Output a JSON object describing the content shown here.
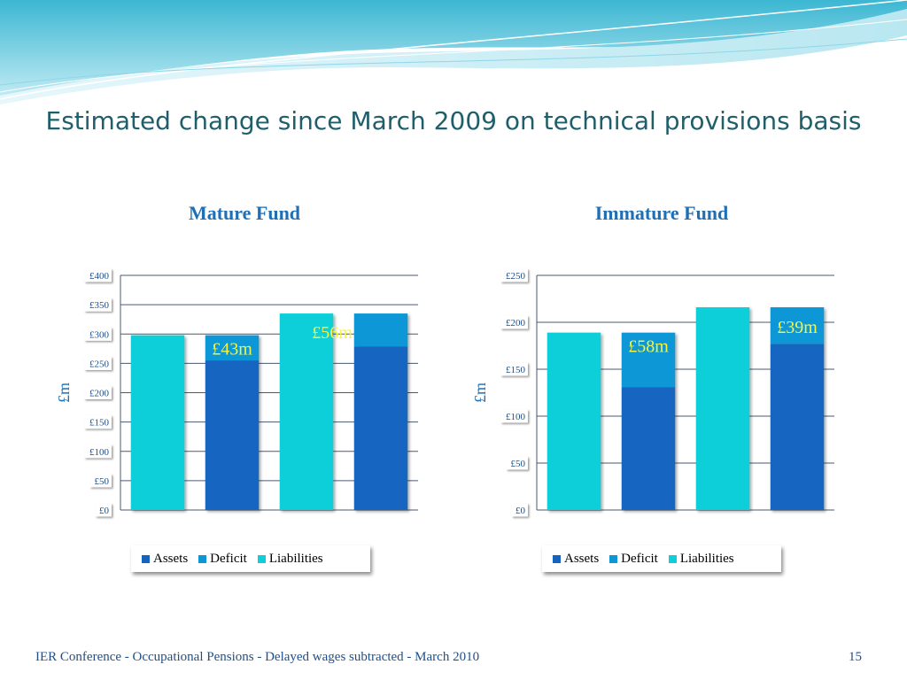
{
  "slide": {
    "title": "Estimated change since March 2009 on technical provisions basis",
    "footer": "IER Conference - Occupational Pensions - Delayed wages subtracted - March 2010",
    "page_number": "15"
  },
  "colors": {
    "assets": "#1565c0",
    "deficit": "#0b97d6",
    "liabilities": "#0ccfd9",
    "annotation": "#f5f542",
    "title": "#1f5f6a",
    "chart_title": "#1e6fb5"
  },
  "chart_data": [
    {
      "type": "bar",
      "stacked": true,
      "title": "Mature Fund",
      "ylabel": "£m",
      "ylim": [
        0,
        400
      ],
      "yticks": [
        0,
        50,
        100,
        150,
        200,
        250,
        300,
        350,
        400
      ],
      "ytick_labels": [
        "£0",
        "£50",
        "£100",
        "£150",
        "£200",
        "£250",
        "£300",
        "£350",
        "£400"
      ],
      "legend": [
        "Assets",
        "Deficit",
        "Liabilities"
      ],
      "legend_position": "bottom",
      "grid": true,
      "bars": [
        {
          "liabilities": 298
        },
        {
          "assets": 255,
          "deficit": 43,
          "label": "£43m"
        },
        {
          "liabilities": 335
        },
        {
          "assets": 279,
          "deficit": 56,
          "label": "£56m"
        }
      ]
    },
    {
      "type": "bar",
      "stacked": true,
      "title": "Immature Fund",
      "ylabel": "£m",
      "ylim": [
        0,
        250
      ],
      "yticks": [
        0,
        50,
        100,
        150,
        200,
        250
      ],
      "ytick_labels": [
        "£0",
        "£50",
        "£100",
        "£150",
        "£200",
        "£250"
      ],
      "legend": [
        "Assets",
        "Deficit",
        "Liabilities"
      ],
      "legend_position": "bottom",
      "grid": true,
      "bars": [
        {
          "liabilities": 189
        },
        {
          "assets": 131,
          "deficit": 58,
          "label": "£58m"
        },
        {
          "liabilities": 216
        },
        {
          "assets": 177,
          "deficit": 39,
          "label": "£39m"
        }
      ]
    }
  ]
}
